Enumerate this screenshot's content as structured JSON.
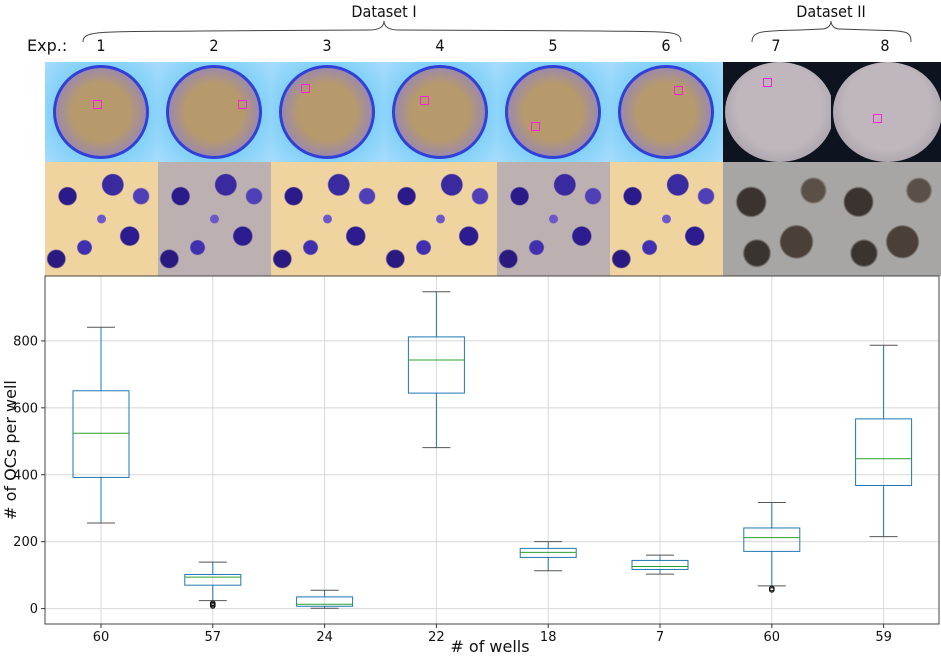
{
  "header": {
    "exp_label": "Exp.:",
    "groups": [
      {
        "label": "Dataset I",
        "experiments": [
          "1",
          "2",
          "3",
          "4",
          "5",
          "6"
        ]
      },
      {
        "label": "Dataset II",
        "experiments": [
          "7",
          "8"
        ]
      }
    ],
    "experiments": [
      "1",
      "2",
      "3",
      "4",
      "5",
      "6",
      "7",
      "8"
    ]
  },
  "colors": {
    "box": "#1f77b4",
    "median": "#2ca02c",
    "whisker_cap": "#000000",
    "roi": "#ff22dd"
  },
  "chart_data": {
    "type": "box",
    "xlabel": "# of wells",
    "ylabel": "# of OCs per well",
    "categories": [
      "60",
      "57",
      "24",
      "22",
      "18",
      "7",
      "60",
      "59"
    ],
    "ylim": [
      -46,
      994
    ],
    "yticks": [
      0,
      200,
      400,
      600,
      800
    ],
    "grid": true,
    "boxes": [
      {
        "experiment": "1",
        "n_wells": "60",
        "whisker_low": 256,
        "q1": 392,
        "median": 524,
        "q3": 651,
        "whisker_high": 841,
        "outliers": []
      },
      {
        "experiment": "2",
        "n_wells": "57",
        "whisker_low": 24,
        "q1": 70,
        "median": 94,
        "q3": 102,
        "whisker_high": 139,
        "outliers": [
          16,
          12,
          8
        ]
      },
      {
        "experiment": "3",
        "n_wells": "24",
        "whisker_low": 1,
        "q1": 7,
        "median": 13,
        "q3": 35,
        "whisker_high": 55,
        "outliers": []
      },
      {
        "experiment": "4",
        "n_wells": "22",
        "whisker_low": 481,
        "q1": 644,
        "median": 743,
        "q3": 812,
        "whisker_high": 947,
        "outliers": []
      },
      {
        "experiment": "5",
        "n_wells": "18",
        "whisker_low": 113,
        "q1": 153,
        "median": 168,
        "q3": 180,
        "whisker_high": 200,
        "outliers": []
      },
      {
        "experiment": "6",
        "n_wells": "7",
        "whisker_low": 103,
        "q1": 117,
        "median": 126,
        "q3": 144,
        "whisker_high": 160,
        "outliers": []
      },
      {
        "experiment": "7",
        "n_wells": "60",
        "whisker_low": 68,
        "q1": 171,
        "median": 212,
        "q3": 241,
        "whisker_high": 317,
        "outliers": [
          60,
          56
        ]
      },
      {
        "experiment": "8",
        "n_wells": "59",
        "whisker_low": 215,
        "q1": 368,
        "median": 448,
        "q3": 567,
        "whisker_high": 787,
        "outliers": []
      }
    ]
  }
}
